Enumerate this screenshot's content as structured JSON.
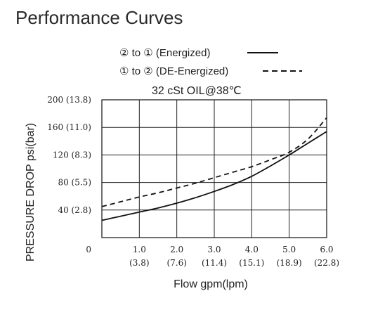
{
  "title": "Performance Curves",
  "chart_data": {
    "type": "line",
    "condition": "32 cSt OIL@38℃",
    "xlabel": "Flow gpm(lpm)",
    "ylabel": "PRESSURE DROP psi(bar)",
    "xlim": [
      0,
      6
    ],
    "ylim": [
      0,
      200
    ],
    "grid": true,
    "legend": "top",
    "x_ticks": [
      {
        "value": 1,
        "top": "1.0",
        "bottom": "(3.8)"
      },
      {
        "value": 2,
        "top": "2.0",
        "bottom": "(7.6)"
      },
      {
        "value": 3,
        "top": "3.0",
        "bottom": "(11.4)"
      },
      {
        "value": 4,
        "top": "4.0",
        "bottom": "(15.1)"
      },
      {
        "value": 5,
        "top": "5.0",
        "bottom": "(18.9)"
      },
      {
        "value": 6,
        "top": "6.0",
        "bottom": "(22.8)"
      }
    ],
    "y_ticks": [
      {
        "value": 0,
        "label": "0"
      },
      {
        "value": 40,
        "label": "40 (2.8)"
      },
      {
        "value": 80,
        "label": "80 (5.5)"
      },
      {
        "value": 120,
        "label": "120 (8.3)"
      },
      {
        "value": 160,
        "label": "160 (11.0)"
      },
      {
        "value": 200,
        "label": "200 (13.8)"
      }
    ],
    "series": [
      {
        "name": "② to ① (Energized)",
        "style": "solid",
        "color": "#111111",
        "x": [
          0,
          0.5,
          1,
          1.5,
          2,
          2.5,
          3,
          3.5,
          4,
          4.5,
          5,
          5.5,
          6
        ],
        "y": [
          25,
          31,
          37,
          43,
          50,
          58,
          67,
          77,
          89,
          104,
          120,
          137,
          154
        ]
      },
      {
        "name": "① to ② (DE-Energized)",
        "style": "dashed",
        "color": "#111111",
        "x": [
          0,
          0.5,
          1,
          1.5,
          2,
          2.5,
          3,
          3.5,
          4,
          4.5,
          5,
          5.5,
          6
        ],
        "y": [
          45,
          52,
          59,
          65,
          72,
          79,
          87,
          95,
          103,
          113,
          124,
          143,
          174
        ]
      }
    ]
  }
}
